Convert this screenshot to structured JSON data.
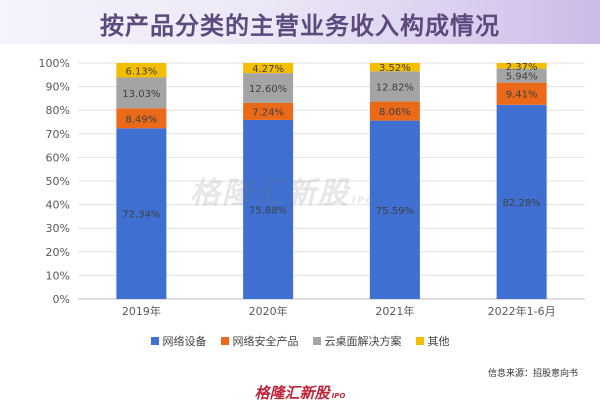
{
  "title": "按产品分类的主营业务收入构成情况",
  "watermark": "格隆汇新股",
  "watermark_sub": "IPO",
  "source": "信息来源：招股意向书",
  "footer": {
    "logo": "格隆汇新股",
    "sub": "IPO"
  },
  "colors": {
    "网络设备": "#3f6fd0",
    "网络安全产品": "#ea6a1a",
    "云桌面解决方案": "#a4a4a4",
    "其他": "#f3be00"
  },
  "chart_data": {
    "type": "bar",
    "stacked": true,
    "percent": true,
    "categories": [
      "2019年",
      "2020年",
      "2021年",
      "2022年1-6月"
    ],
    "series": [
      {
        "name": "网络设备",
        "values": [
          72.34,
          75.88,
          75.59,
          82.28
        ],
        "labels": [
          "72.34%",
          "75.88%",
          "75.59%",
          "82.28%"
        ],
        "color": "#3f6fd0"
      },
      {
        "name": "网络安全产品",
        "values": [
          8.49,
          7.24,
          8.06,
          9.41
        ],
        "labels": [
          "8.49%",
          "7.24%",
          "8.06%",
          "9.41%"
        ],
        "color": "#ea6a1a"
      },
      {
        "name": "云桌面解决方案",
        "values": [
          13.03,
          12.6,
          12.82,
          5.94
        ],
        "labels": [
          "13.03%",
          "12.60%",
          "12.82%",
          "5.94%"
        ],
        "color": "#a4a4a4"
      },
      {
        "name": "其他",
        "values": [
          6.13,
          4.27,
          3.52,
          2.37
        ],
        "labels": [
          "6.13%",
          "4.27%",
          "3.52%",
          "2.37%"
        ],
        "color": "#f3be00"
      }
    ],
    "ylim": [
      0,
      100
    ],
    "yticks": [
      "0%",
      "10%",
      "20%",
      "30%",
      "40%",
      "50%",
      "60%",
      "70%",
      "80%",
      "90%",
      "100%"
    ],
    "xlabel": "",
    "ylabel": "",
    "legend": "bottom",
    "grid": true
  }
}
